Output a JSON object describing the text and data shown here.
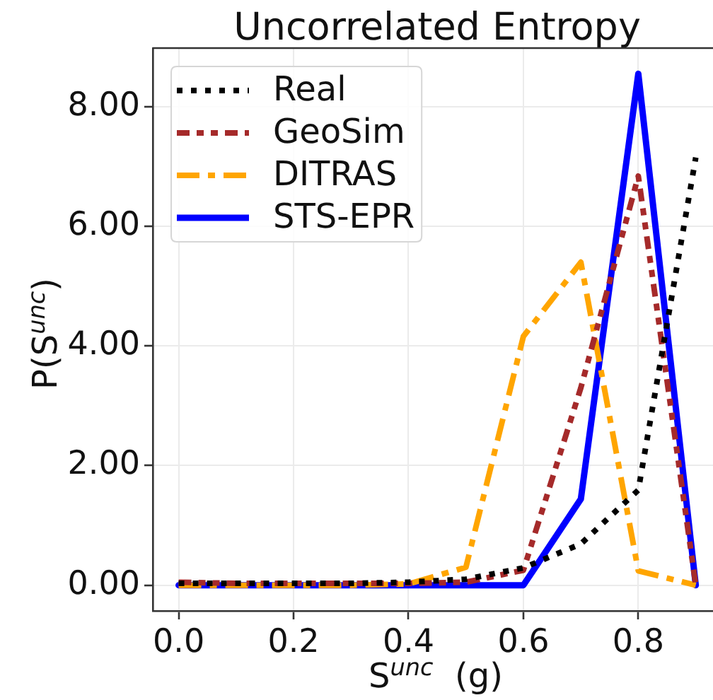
{
  "chart_data": {
    "type": "line",
    "title": "Uncorrelated Entropy",
    "xlabel": "S$^{unc}$  (g)",
    "ylabel": "P(S$^{unc}$)",
    "x": [
      0,
      0.1,
      0.2,
      0.3,
      0.4,
      0.5,
      0.6,
      0.7,
      0.8,
      0.9
    ],
    "series": [
      {
        "name": "Real",
        "color": "#000000",
        "line_style": "dotted",
        "values": [
          0.03,
          0.03,
          0.03,
          0.03,
          0.05,
          0.1,
          0.29,
          0.69,
          1.59,
          7.15
        ]
      },
      {
        "name": "GeoSim",
        "color": "#a52a2a",
        "line_style": "dashdotdot",
        "values": [
          0.05,
          0.03,
          0.03,
          0.03,
          0.03,
          0.05,
          0.25,
          3.3,
          6.84,
          0
        ]
      },
      {
        "name": "DITRAS",
        "color": "#ffa500",
        "line_style": "dashdot",
        "values": [
          0,
          0,
          0,
          0,
          0.02,
          0.3,
          4.16,
          5.4,
          0.24,
          0
        ]
      },
      {
        "name": "STS-EPR",
        "color": "#0000ff",
        "line_style": "solid",
        "values": [
          0,
          0,
          0,
          0,
          0,
          0,
          0,
          1.44,
          8.55,
          0
        ]
      }
    ],
    "xlim": [
      -0.045,
      0.93
    ],
    "ylim": [
      -0.43,
      8.98
    ],
    "xticks": [
      {
        "value": 0,
        "label": "0.0"
      },
      {
        "value": 0.2,
        "label": "0.2"
      },
      {
        "value": 0.4,
        "label": "0.4"
      },
      {
        "value": 0.6,
        "label": "0.6"
      },
      {
        "value": 0.8,
        "label": "0.8"
      }
    ],
    "yticks": [
      {
        "value": 0,
        "label": "0.00"
      },
      {
        "value": 2,
        "label": "2.00"
      },
      {
        "value": 4,
        "label": "4.00"
      },
      {
        "value": 6,
        "label": "6.00"
      },
      {
        "value": 8,
        "label": "8.00"
      }
    ],
    "grid": true,
    "legend": "top left"
  }
}
